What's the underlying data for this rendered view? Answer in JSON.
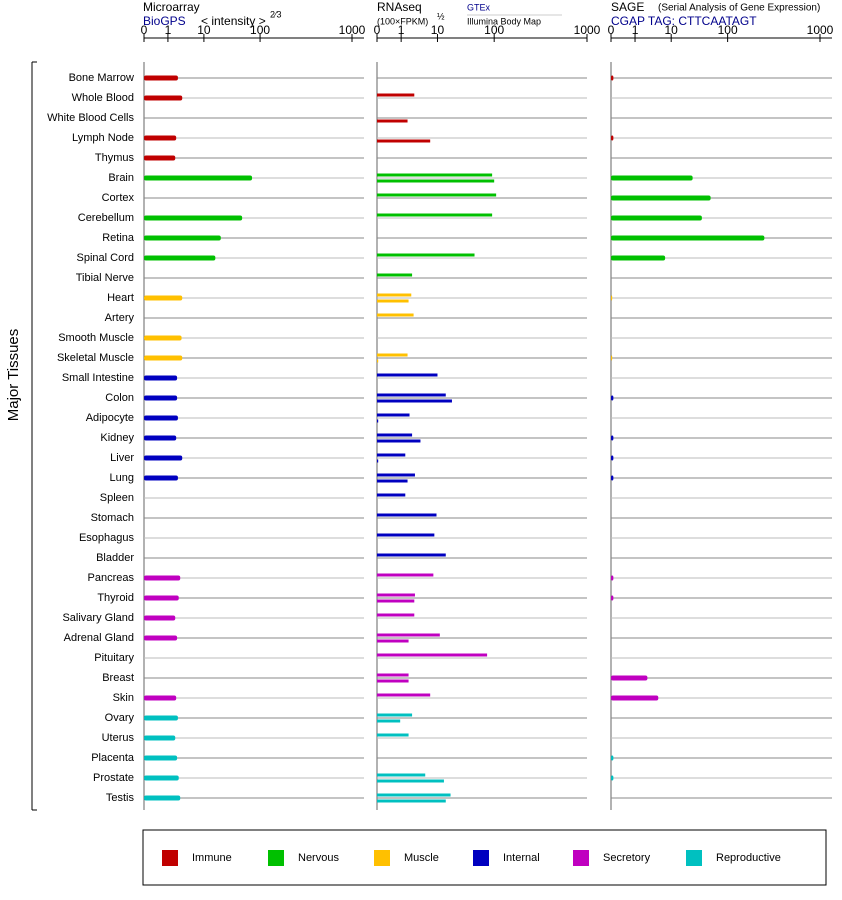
{
  "chart_data": {
    "type": "bar",
    "orientation": "horizontal",
    "y_axis_label": "Major Tissues",
    "categories": [
      "Bone Marrow",
      "Whole Blood",
      "White Blood Cells",
      "Lymph Node",
      "Thymus",
      "Brain",
      "Cortex",
      "Cerebellum",
      "Retina",
      "Spinal Cord",
      "Tibial Nerve",
      "Heart",
      "Artery",
      "Smooth Muscle",
      "Skeletal Muscle",
      "Small Intestine",
      "Colon",
      "Adipocyte",
      "Kidney",
      "Liver",
      "Lung",
      "Spleen",
      "Stomach",
      "Esophagus",
      "Bladder",
      "Pancreas",
      "Thyroid",
      "Salivary Gland",
      "Adrenal Gland",
      "Pituitary",
      "Breast",
      "Skin",
      "Ovary",
      "Uterus",
      "Placenta",
      "Prostate",
      "Testis"
    ],
    "category_groups": [
      0,
      0,
      0,
      0,
      0,
      1,
      1,
      1,
      1,
      1,
      1,
      2,
      2,
      2,
      2,
      3,
      3,
      3,
      3,
      3,
      3,
      3,
      3,
      3,
      3,
      4,
      4,
      4,
      4,
      4,
      4,
      4,
      5,
      5,
      5,
      5,
      5
    ],
    "groups": [
      {
        "name": "Immune",
        "color": "#c00000"
      },
      {
        "name": "Nervous",
        "color": "#00c000"
      },
      {
        "name": "Muscle",
        "color": "#ffc000"
      },
      {
        "name": "Internal",
        "color": "#0000c0"
      },
      {
        "name": "Secretory",
        "color": "#c000c0"
      },
      {
        "name": "Reproductive",
        "color": "#00c0c0"
      }
    ],
    "panels": [
      {
        "title": "Microarray",
        "subtitle": "BioGPS",
        "scale_label": "< intensity >",
        "scale_exponent": "2⁄3",
        "xlim": [
          0,
          1000
        ],
        "xticks": [
          0,
          1,
          10,
          100,
          1000
        ],
        "values": [
          1.9,
          2.5,
          null,
          1.7,
          1.6,
          72,
          null,
          48,
          20,
          16,
          null,
          2.5,
          null,
          2.4,
          2.5,
          1.8,
          1.8,
          1.9,
          1.7,
          2.5,
          1.9,
          null,
          null,
          null,
          null,
          2.2,
          2.0,
          1.6,
          1.8,
          null,
          null,
          1.7,
          1.9,
          1.6,
          1.8,
          2.0,
          2.2
        ]
      },
      {
        "title": "RNAseq",
        "subtitle": "(100×FPKM)",
        "scale_exponent": "½",
        "xlim": [
          0,
          1000
        ],
        "xticks": [
          0,
          1,
          10,
          100,
          1000
        ],
        "series": [
          {
            "name": "GTEx",
            "values": [
              null,
              2.3,
              null,
              null,
              null,
              92,
              105,
              92,
              null,
              45,
              2.0,
              1.9,
              2.2,
              null,
              1.5,
              10,
              14,
              1.7,
              2.0,
              1.3,
              2.4,
              1.3,
              9.4,
              8.2,
              14,
              7.7,
              2.4,
              2.3,
              11,
              75,
              1.6,
              6.3,
              2.0,
              1.6,
              null,
              4.6,
              17
            ]
          },
          {
            "name": "Illumina Body Map",
            "values": [
              null,
              null,
              1.5,
              6.3,
              null,
              100,
              null,
              null,
              null,
              null,
              null,
              1.6,
              null,
              null,
              0.05,
              null,
              18,
              0.05,
              3.4,
              0.05,
              1.5,
              null,
              null,
              null,
              null,
              null,
              2.3,
              null,
              1.6,
              null,
              1.6,
              null,
              0.96,
              null,
              null,
              13,
              14
            ]
          }
        ]
      },
      {
        "title": "SAGE",
        "note": "(Serial Analysis of Gene Expression)",
        "subtitle": "CGAP TAG: CTTCAATAGT",
        "xlim": [
          0,
          1000
        ],
        "xticks": [
          0,
          1,
          10,
          100,
          1000
        ],
        "values": [
          0.1,
          null,
          null,
          0.1,
          null,
          24,
          50,
          35,
          250,
          6.8,
          null,
          0.05,
          null,
          null,
          0.05,
          null,
          0.1,
          null,
          0.1,
          0.1,
          0.1,
          null,
          null,
          null,
          null,
          0.1,
          0.1,
          null,
          null,
          null,
          2.2,
          4.4,
          null,
          null,
          0.1,
          0.1,
          null
        ]
      }
    ]
  }
}
